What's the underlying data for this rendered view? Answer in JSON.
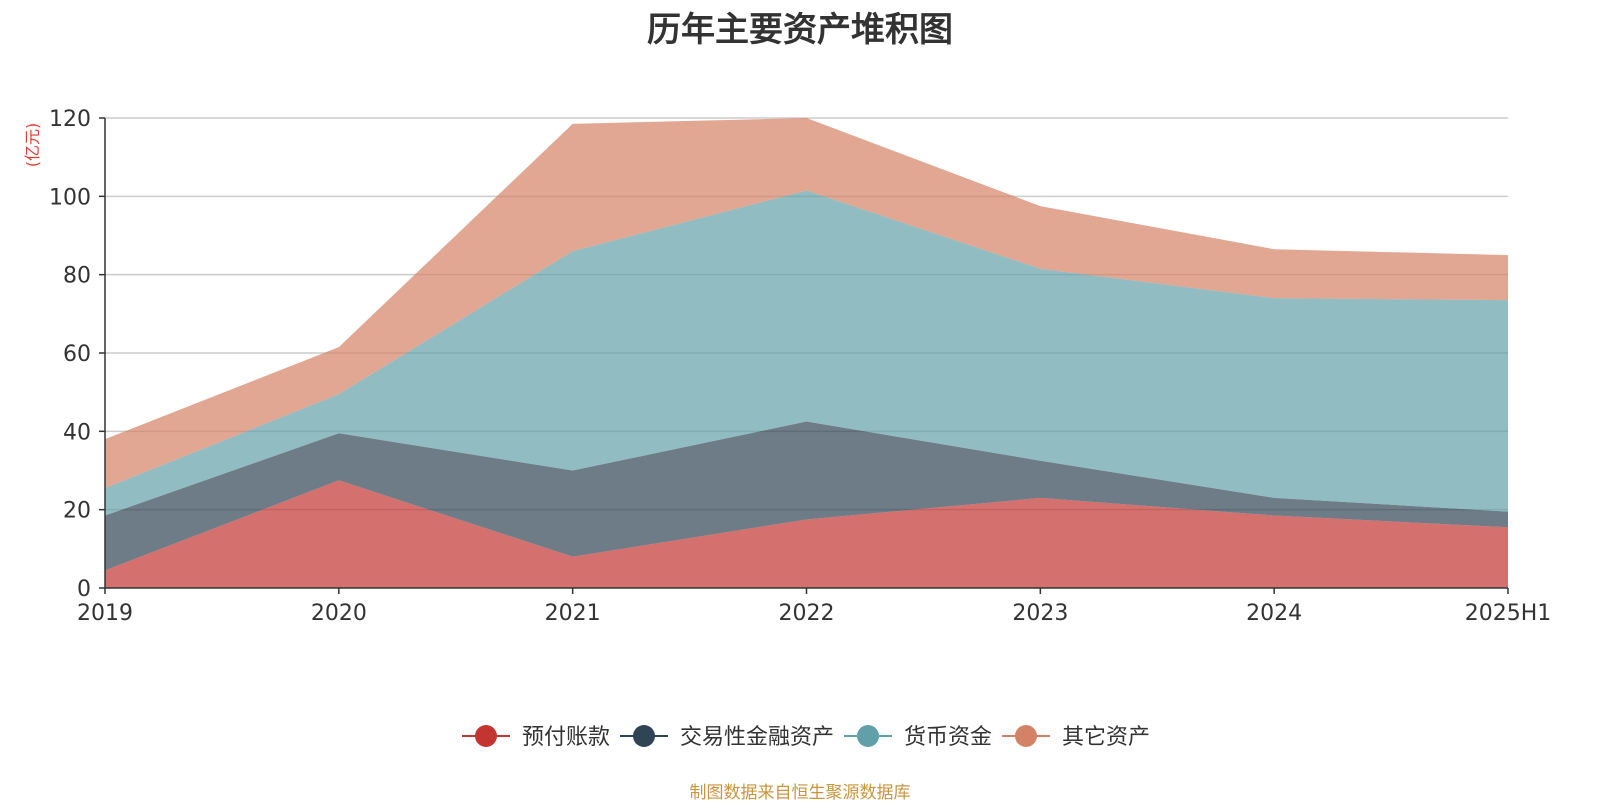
{
  "chart_data": {
    "type": "area",
    "stacked": true,
    "title": "历年主要资产堆积图",
    "unit_label": "(亿元)",
    "categories": [
      "2019",
      "2020",
      "2021",
      "2022",
      "2023",
      "2024",
      "2025H1"
    ],
    "ylim": [
      0,
      120
    ],
    "yticks": [
      0,
      20,
      40,
      60,
      80,
      100,
      120
    ],
    "grid": true,
    "legend_position": "bottom",
    "series": [
      {
        "name": "预付账款",
        "color": "#c23531",
        "values": [
          4.5,
          27.5,
          8.0,
          17.5,
          23.0,
          18.5,
          15.5
        ]
      },
      {
        "name": "交易性金融资产",
        "color": "#2f4554",
        "values": [
          14.0,
          12.0,
          22.0,
          25.0,
          9.5,
          4.5,
          4.0
        ]
      },
      {
        "name": "货币资金",
        "color": "#61a0a8",
        "values": [
          7.0,
          10.0,
          56.0,
          59.0,
          49.0,
          51.0,
          54.0
        ]
      },
      {
        "name": "其它资产",
        "color": "#d48265",
        "values": [
          12.5,
          12.0,
          32.5,
          18.5,
          16.0,
          12.5,
          11.5
        ]
      }
    ]
  },
  "source_note": "制图数据来自恒生聚源数据库"
}
